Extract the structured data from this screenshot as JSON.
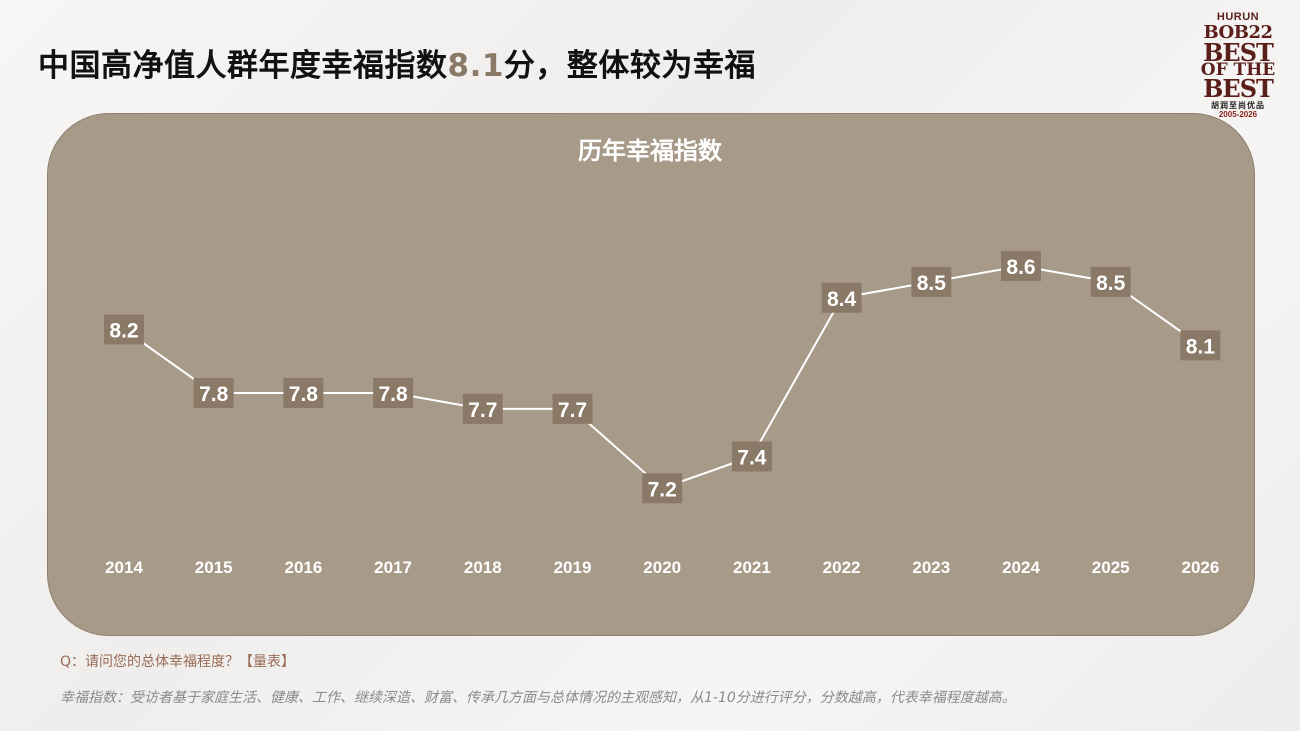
{
  "header": {
    "title_before": "中国高净值人群年度幸福指数",
    "title_highlight": "8.1",
    "title_after": "分，整体较为幸福"
  },
  "logo": {
    "brand": "HURUN",
    "bob": "BOB22",
    "line1": "BEST",
    "line2": "OF THE",
    "line3": "BEST",
    "cn": "胡润至尚优品",
    "years": "2005-2026"
  },
  "chart_data": {
    "type": "line",
    "title": "历年幸福指数",
    "categories": [
      "2014",
      "2015",
      "2016",
      "2017",
      "2018",
      "2019",
      "2020",
      "2021",
      "2022",
      "2023",
      "2024",
      "2025",
      "2026"
    ],
    "values": [
      8.2,
      7.8,
      7.8,
      7.8,
      7.7,
      7.7,
      7.2,
      7.4,
      8.4,
      8.5,
      8.6,
      8.5,
      8.1
    ],
    "labels": [
      "8.2",
      "7.8",
      "7.8",
      "7.8",
      "7.7",
      "7.7",
      "7.2",
      "7.4",
      "8.4",
      "8.5",
      "8.6",
      "8.5",
      "8.1"
    ],
    "legend": "none",
    "grid": false,
    "colors": {
      "panel": "#a89a89",
      "label_box": "#8b7968",
      "line": "#ffffff"
    }
  },
  "footer": {
    "question": "Q：请问您的总体幸福程度？【量表】",
    "note": "幸福指数：受访者基于家庭生活、健康、工作、继续深造、财富、传承几方面与总体情况的主观感知，从1-10分进行评分，分数越高，代表幸福程度越高。"
  }
}
